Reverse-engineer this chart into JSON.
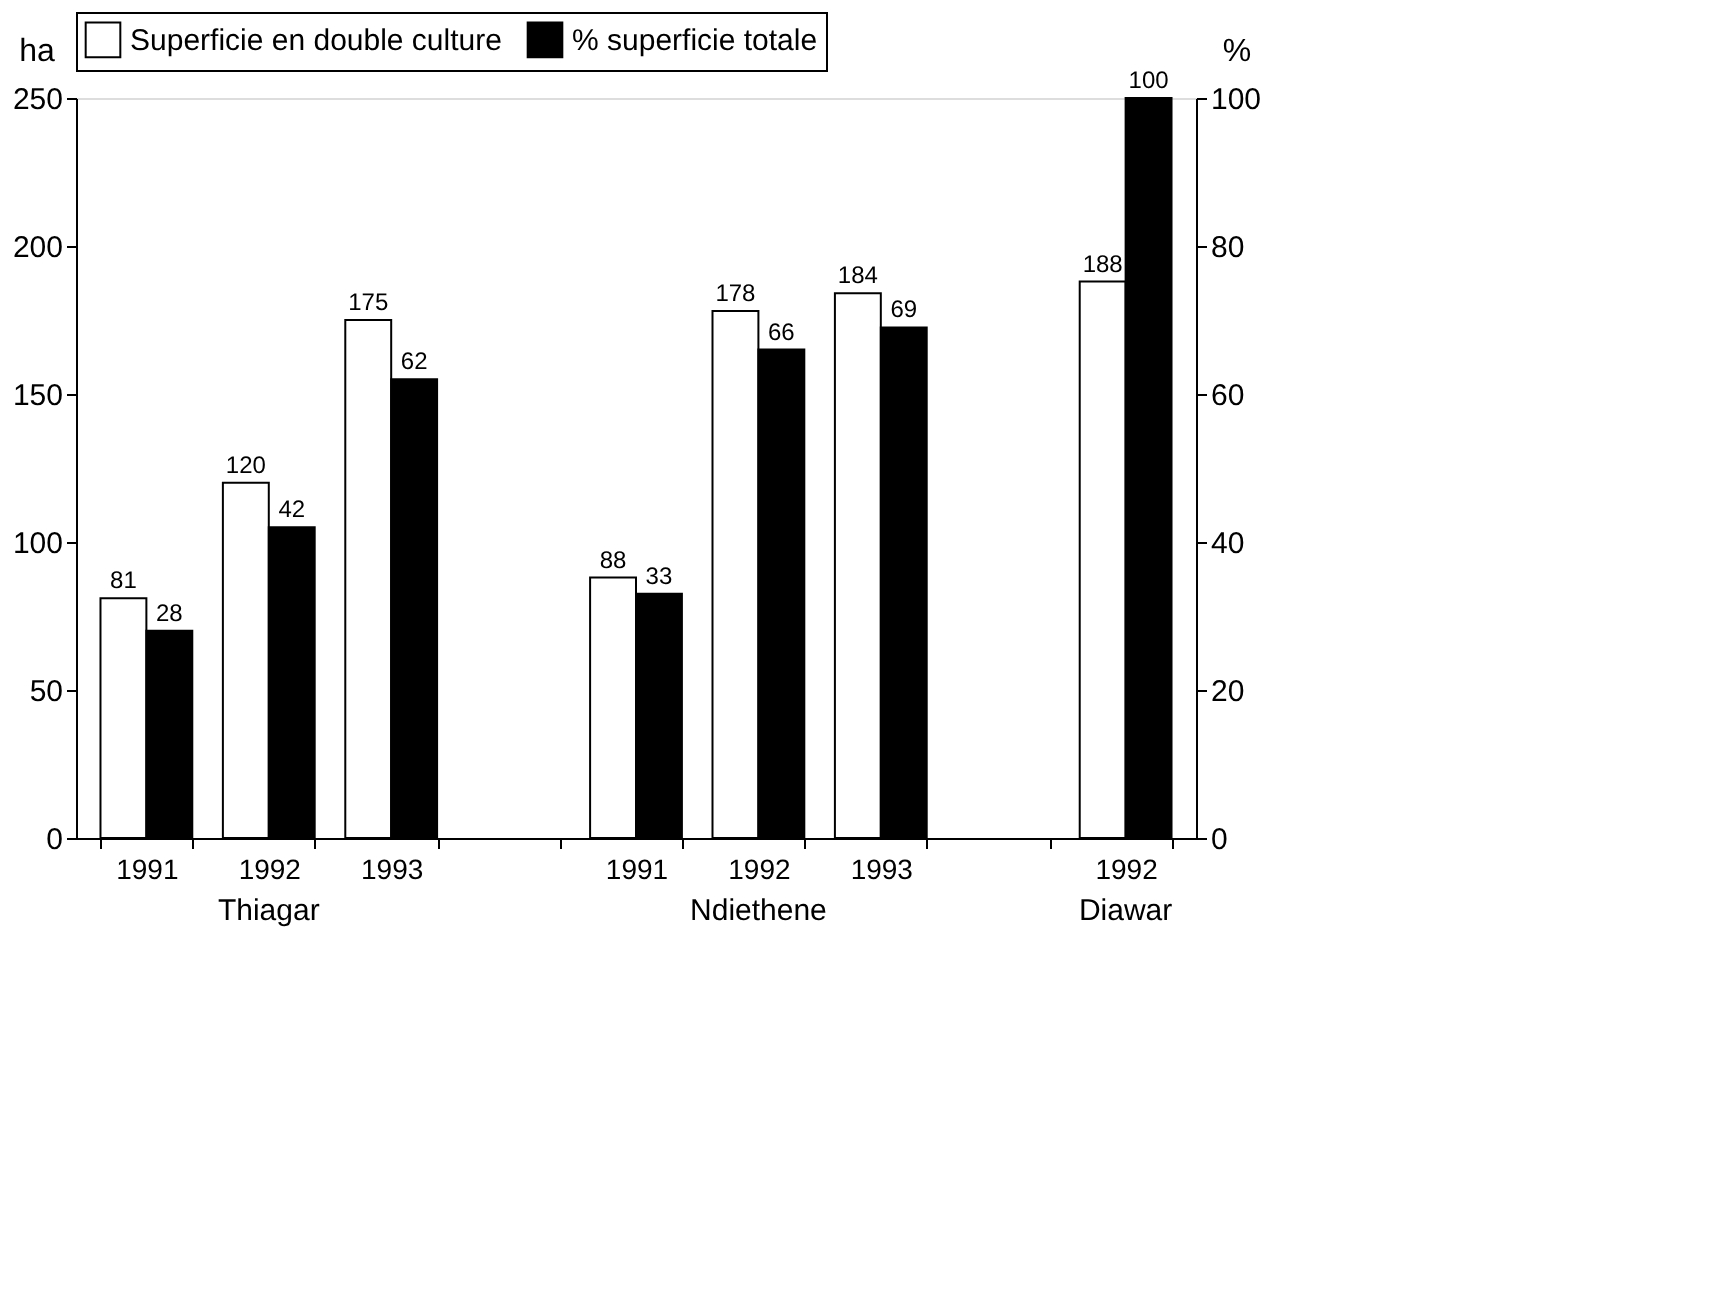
{
  "chart_data": {
    "type": "bar",
    "categories": [
      "1991",
      "1992",
      "1993",
      null,
      "1991",
      "1992",
      "1993",
      null,
      "1992"
    ],
    "series": [
      {
        "name": "Superficie en double culture",
        "color": "#ffffff",
        "values": [
          81,
          120,
          175,
          null,
          88,
          178,
          184,
          null,
          188
        ]
      },
      {
        "name": "% superficie totale",
        "color": "#000000",
        "values": [
          28,
          42,
          62,
          null,
          33,
          66,
          69,
          null,
          100
        ],
        "axis": "y2"
      }
    ],
    "ylabel": "ha",
    "y2label": "%",
    "ylim": [
      0,
      250
    ],
    "yticks": [
      0,
      50,
      100,
      150,
      200,
      250
    ],
    "y2lim": [
      0,
      100
    ],
    "y2ticks": [
      0,
      20,
      40,
      60,
      80,
      100
    ],
    "annotations": [
      "Thiagar",
      "Ndiethene",
      "Diawar"
    ],
    "data_labels": true,
    "legend": "top",
    "grid": false
  }
}
